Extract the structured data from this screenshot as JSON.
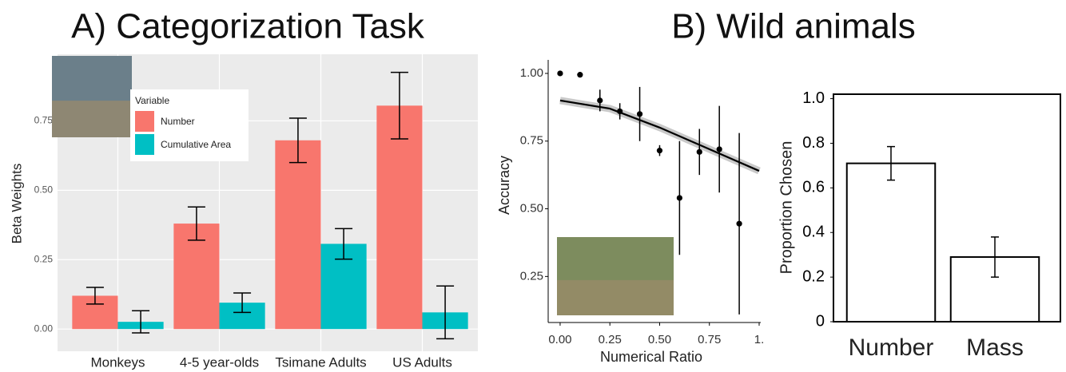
{
  "chart_data": [
    {
      "type": "bar",
      "title": "A) Categorization Task",
      "ylabel": "Beta Weights",
      "categories": [
        "Monkeys",
        "4-5 year-olds",
        "Tsimane Adults",
        "US Adults"
      ],
      "legend_title": "Variable",
      "legend": "upper left",
      "grid": true,
      "series": [
        {
          "name": "Number",
          "color": "#f8766d",
          "values": [
            0.12,
            0.38,
            0.68,
            0.805
          ],
          "errors": [
            0.03,
            0.06,
            0.08,
            0.12
          ]
        },
        {
          "name": "Cumulative Area",
          "color": "#00bfc4",
          "values": [
            0.026,
            0.095,
            0.307,
            0.06
          ],
          "errors": [
            0.04,
            0.035,
            0.055,
            0.095
          ]
        }
      ],
      "ylim": [
        -0.08,
        0.99
      ],
      "yticks": [
        {
          "value": 0,
          "label": "0.00"
        },
        0.25,
        {
          "value": 0.5,
          "label": "0.50"
        },
        0.75
      ]
    },
    {
      "type": "scatter",
      "title": "B) Wild animals",
      "xlabel": "Numerical Ratio",
      "ylabel": "Accuracy",
      "x": [
        0,
        0.1,
        0.2,
        0.3,
        0.4,
        0.5,
        0.6,
        0.7,
        0.8,
        0.9
      ],
      "y": [
        1.0,
        0.995,
        0.9,
        0.86,
        0.85,
        0.715,
        0.54,
        0.71,
        0.72,
        0.445
      ],
      "errors": [
        0,
        0.01,
        0.04,
        0.03,
        0.1,
        0.02,
        0.21,
        0.085,
        0.16,
        0.335
      ],
      "fit": {
        "x": [
          0,
          0.25,
          0.5,
          0.75,
          1
        ],
        "y": [
          0.9,
          0.87,
          0.8,
          0.72,
          0.64
        ]
      },
      "color": "#000000",
      "xlim": [
        -0.06,
        1.0
      ],
      "ylim": [
        0.08,
        1.05
      ],
      "xticks": [
        {
          "value": 0,
          "label": "0.00"
        },
        0.25,
        {
          "value": 0.5,
          "label": "0.50"
        },
        0.75,
        {
          "value": 1,
          "label": "1."
        }
      ],
      "yticks": [
        {
          "value": 0.25,
          "label": "0.25"
        },
        {
          "value": 0.5,
          "label": "0.50"
        },
        0.75,
        {
          "value": 1,
          "label": "1.00"
        }
      ]
    },
    {
      "type": "bar",
      "ylabel": "Proportion Chosen",
      "categories": [
        "Number",
        "Mass"
      ],
      "values": [
        0.71,
        0.29
      ],
      "errors": [
        0.075,
        0.09
      ],
      "color": "#ffffff",
      "ylim": [
        0,
        1.02
      ],
      "yticks": [
        0,
        0.2,
        0.4,
        0.6,
        0.8,
        {
          "value": 1,
          "label": "1.0"
        }
      ]
    }
  ]
}
